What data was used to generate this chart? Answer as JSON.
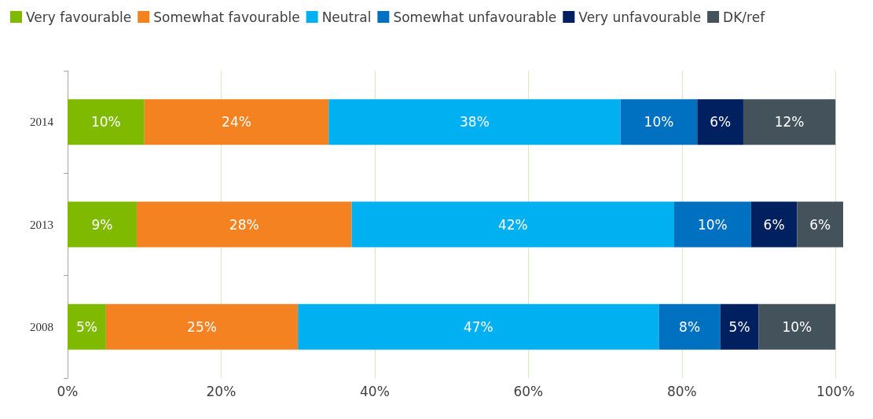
{
  "chart_data": {
    "type": "bar",
    "orientation": "horizontal",
    "stacked": true,
    "categories": [
      "2014",
      "2013",
      "2008"
    ],
    "series": [
      {
        "name": "Very favourable",
        "color": "#7fba00",
        "values": [
          10,
          9,
          5
        ],
        "value_labels": [
          "10%",
          "9%",
          "5%"
        ]
      },
      {
        "name": "Somewhat favourable",
        "color": "#f58220",
        "values": [
          24,
          28,
          25
        ],
        "value_labels": [
          "24%",
          "28%",
          "25%"
        ]
      },
      {
        "name": "Neutral",
        "color": "#00b0f0",
        "values": [
          38,
          42,
          47
        ],
        "value_labels": [
          "38%",
          "42%",
          "47%"
        ]
      },
      {
        "name": "Somewhat unfavourable",
        "color": "#0070c0",
        "values": [
          10,
          10,
          8
        ],
        "value_labels": [
          "10%",
          "10%",
          "8%"
        ]
      },
      {
        "name": "Very unfavourable",
        "color": "#002060",
        "values": [
          6,
          6,
          5
        ],
        "value_labels": [
          "6%",
          "6%",
          "5%"
        ]
      },
      {
        "name": "DK/ref",
        "color": "#44525c",
        "values": [
          12,
          6,
          10
        ],
        "value_labels": [
          "12%",
          "6%",
          "10%"
        ]
      }
    ],
    "xlim": [
      0,
      101
    ],
    "xticks": [
      {
        "value": 0,
        "label": "0%"
      },
      {
        "value": 20,
        "label": "20%"
      },
      {
        "value": 40,
        "label": "40%"
      },
      {
        "value": 60,
        "label": "60%"
      },
      {
        "value": 80,
        "label": "80%"
      },
      {
        "value": 100,
        "label": "100%"
      }
    ],
    "grid": "x",
    "legend": "top left"
  }
}
